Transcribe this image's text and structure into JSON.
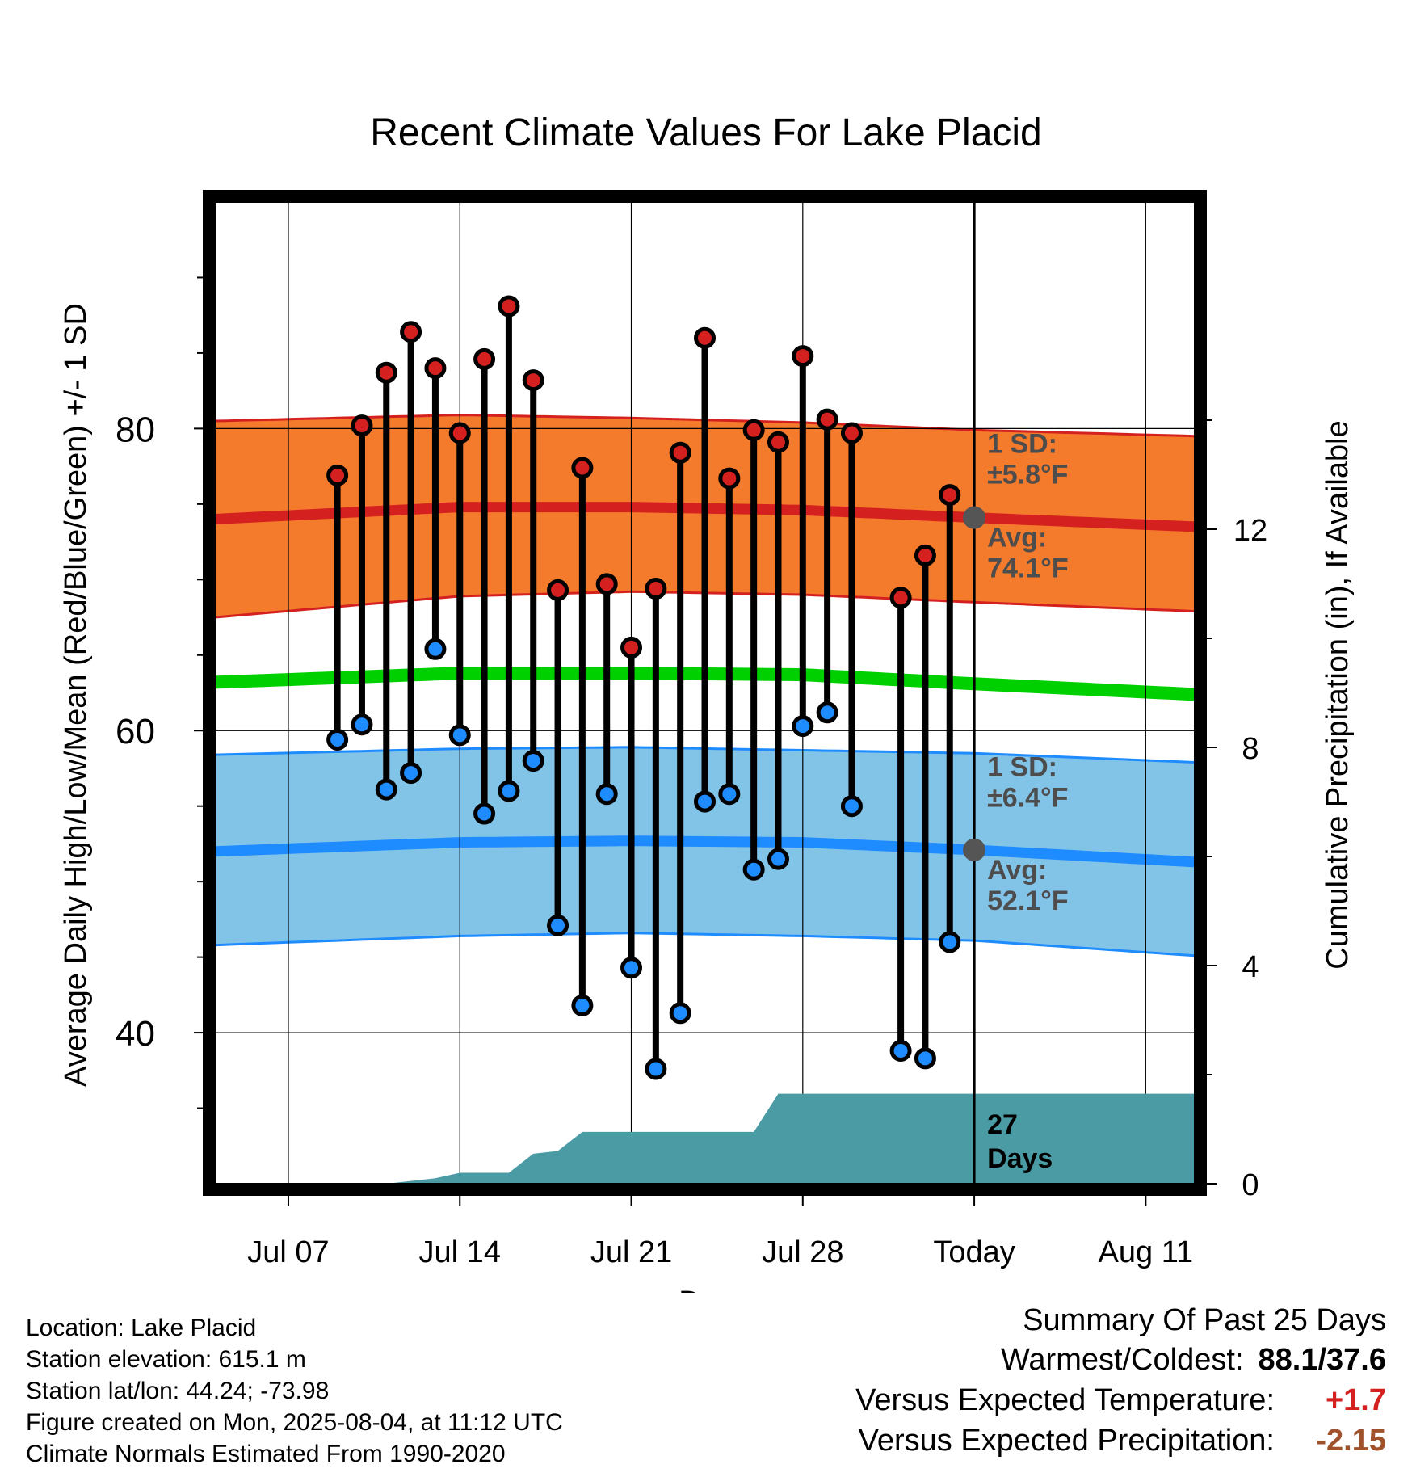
{
  "chart_data": {
    "type": "line",
    "title": "Recent Climate Values For Lake Placid",
    "xlabel": "Day",
    "ylabel": "Average Daily High/Low/Mean (Red/Blue/Green) +/- 1 SD",
    "y2label": "Cumulative Precipitation (in), If Available",
    "x_ticks": [
      "Jul 07",
      "Jul 14",
      "Jul 21",
      "Jul 28",
      "Today",
      "Aug 11"
    ],
    "x_tick_dates": [
      "2025-07-07",
      "2025-07-14",
      "2025-07-21",
      "2025-07-28",
      "2025-08-04",
      "2025-08-11"
    ],
    "x_range": [
      "2025-07-04",
      "2025-08-13"
    ],
    "today": "2025-08-04",
    "ylim": [
      30,
      95
    ],
    "y_ticks": [
      40,
      60,
      80
    ],
    "y2lim": [
      0,
      18
    ],
    "y2_ticks": [
      0,
      4,
      8,
      12
    ],
    "grid": true,
    "normals": {
      "dates": [
        "2025-07-04",
        "2025-07-14",
        "2025-07-21",
        "2025-07-28",
        "2025-08-04",
        "2025-08-13"
      ],
      "high_avg": [
        74.0,
        74.8,
        74.8,
        74.6,
        74.1,
        73.5
      ],
      "high_upper": [
        80.5,
        80.9,
        80.7,
        80.4,
        79.9,
        79.5
      ],
      "high_lower": [
        67.5,
        68.9,
        69.2,
        69.0,
        68.5,
        67.9
      ],
      "mean_avg": [
        63.2,
        63.8,
        63.8,
        63.7,
        63.1,
        62.4
      ],
      "low_avg": [
        52.0,
        52.6,
        52.7,
        52.6,
        52.1,
        51.3
      ],
      "low_upper": [
        58.4,
        58.8,
        58.9,
        58.7,
        58.5,
        57.9
      ],
      "low_lower": [
        45.8,
        46.4,
        46.6,
        46.4,
        46.1,
        45.1
      ]
    },
    "series": [
      {
        "name": "High",
        "dates": [
          "2025-07-09",
          "2025-07-10",
          "2025-07-11",
          "2025-07-12",
          "2025-07-13",
          "2025-07-14",
          "2025-07-15",
          "2025-07-16",
          "2025-07-17",
          "2025-07-18",
          "2025-07-19",
          "2025-07-20",
          "2025-07-21",
          "2025-07-22",
          "2025-07-23",
          "2025-07-24",
          "2025-07-25",
          "2025-07-26",
          "2025-07-27",
          "2025-07-28",
          "2025-07-29",
          "2025-07-30",
          "2025-08-01",
          "2025-08-02",
          "2025-08-03"
        ],
        "values": [
          76.9,
          80.2,
          83.7,
          86.4,
          84.0,
          79.7,
          84.6,
          88.1,
          83.2,
          69.3,
          77.4,
          69.7,
          65.5,
          69.4,
          78.4,
          86.0,
          76.7,
          79.9,
          79.1,
          84.8,
          80.6,
          79.7,
          68.8,
          71.6,
          75.6
        ]
      },
      {
        "name": "Low",
        "dates": [
          "2025-07-09",
          "2025-07-10",
          "2025-07-11",
          "2025-07-12",
          "2025-07-13",
          "2025-07-14",
          "2025-07-15",
          "2025-07-16",
          "2025-07-17",
          "2025-07-18",
          "2025-07-19",
          "2025-07-20",
          "2025-07-21",
          "2025-07-22",
          "2025-07-23",
          "2025-07-24",
          "2025-07-25",
          "2025-07-26",
          "2025-07-27",
          "2025-07-28",
          "2025-07-29",
          "2025-07-30",
          "2025-08-01",
          "2025-08-02",
          "2025-08-03"
        ],
        "values": [
          59.4,
          60.4,
          56.1,
          57.2,
          65.4,
          59.7,
          54.5,
          56.0,
          58.0,
          47.1,
          41.8,
          55.8,
          44.3,
          37.6,
          41.3,
          55.3,
          55.8,
          50.8,
          51.5,
          60.3,
          61.2,
          55.0,
          38.8,
          38.3,
          46.0
        ]
      },
      {
        "name": "Precipitation",
        "dates": [
          "2025-07-04",
          "2025-07-09",
          "2025-07-10",
          "2025-07-11",
          "2025-07-12",
          "2025-07-13",
          "2025-07-14",
          "2025-07-15",
          "2025-07-16",
          "2025-07-17",
          "2025-07-18",
          "2025-07-19",
          "2025-07-20",
          "2025-07-21",
          "2025-07-22",
          "2025-07-23",
          "2025-07-24",
          "2025-07-25",
          "2025-07-26",
          "2025-07-27",
          "2025-07-28",
          "2025-07-29",
          "2025-07-30",
          "2025-08-01",
          "2025-08-02",
          "2025-08-03",
          "2025-08-13"
        ],
        "values": [
          0,
          0,
          0,
          0,
          0.05,
          0.1,
          0.2,
          0.2,
          0.2,
          0.55,
          0.6,
          0.95,
          0.95,
          0.95,
          0.95,
          0.95,
          0.95,
          0.95,
          0.95,
          1.65,
          1.65,
          1.65,
          1.65,
          1.65,
          1.65,
          1.65,
          1.65
        ]
      }
    ],
    "annotations": {
      "high_sd": "1 SD:",
      "high_sd_value": "±5.8°F",
      "high_avg_label": "Avg:",
      "high_avg_value": "74.1°F",
      "low_sd": "1 SD:",
      "low_sd_value": "±6.4°F",
      "low_avg_label": "Avg:",
      "low_avg_value": "52.1°F",
      "days_count": "27",
      "days_label": "Days"
    },
    "colors": {
      "high_band": "#f47a2c",
      "high_line": "#d52020",
      "mean_line": "#00d000",
      "low_band": "#82c3e8",
      "low_line": "#1e8cff",
      "precip": "#4a9ba4",
      "high_marker": "#d52020",
      "low_marker": "#1e8cff",
      "annotation": "#4d4d4d"
    }
  },
  "footer": {
    "location": "Location: Lake Placid",
    "elevation": "Station elevation: 615.1 m",
    "latlon": "Station lat/lon: 44.24; -73.98",
    "created": "Figure created on Mon, 2025-08-04, at 11:12 UTC",
    "normals": "Climate Normals Estimated From 1990-2020"
  },
  "summary": {
    "title": "Summary Of Past 25 Days",
    "warmest_label": "Warmest/Coldest:",
    "warmest_value": "88.1/37.6",
    "temp_label": "Versus Expected Temperature:",
    "temp_value": "+1.7",
    "temp_color": "#d52020",
    "precip_label": "Versus Expected Precipitation:",
    "precip_value": "-2.15",
    "precip_color": "#a0522d"
  }
}
